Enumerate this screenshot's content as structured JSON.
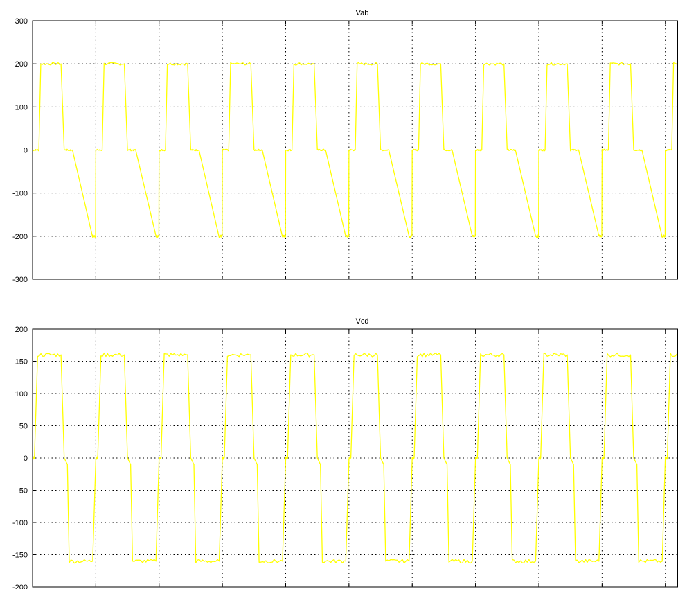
{
  "chart_data": [
    {
      "type": "line",
      "title": "Vab",
      "xlabel": "",
      "ylabel": "",
      "ylim": [
        -300,
        300
      ],
      "yticks": [
        -300,
        -200,
        -100,
        0,
        100,
        200,
        300
      ],
      "ytick_labels": [
        "-300",
        "-200",
        "-100",
        "0",
        "100",
        "200",
        "300"
      ],
      "xlim": [
        0,
        10.2
      ],
      "xticks": [
        1,
        2,
        3,
        4,
        5,
        6,
        7,
        8,
        9,
        10
      ],
      "grid": true,
      "background": "#ffffff",
      "series": [
        {
          "color": "#ffff00",
          "waveform": "quasi-square",
          "amplitude": 200,
          "period": 1,
          "cycles": 10.2,
          "x": [
            0,
            0.1,
            0.13,
            0.45,
            0.5,
            0.63,
            0.95,
            1.0
          ],
          "y": [
            0,
            0,
            200,
            200,
            0,
            0,
            -200,
            -200
          ]
        }
      ]
    },
    {
      "type": "line",
      "title": "Vcd",
      "xlabel": "",
      "ylabel": "",
      "ylim": [
        -200,
        200
      ],
      "yticks": [
        -200,
        -150,
        -100,
        -50,
        0,
        50,
        100,
        150,
        200
      ],
      "ytick_labels": [
        "-200",
        "-150",
        "-100",
        "-50",
        "0",
        "50",
        "100",
        "150",
        "200"
      ],
      "xlim": [
        0,
        10.2
      ],
      "xticks": [
        1,
        2,
        3,
        4,
        5,
        6,
        7,
        8,
        9,
        10
      ],
      "grid": true,
      "background": "#ffffff",
      "series": [
        {
          "color": "#ffff00",
          "waveform": "quasi-square",
          "amplitude": 160,
          "period": 1,
          "cycles": 10.2,
          "x": [
            0,
            0.03,
            0.08,
            0.45,
            0.5,
            0.55,
            0.58,
            0.95,
            1.0
          ],
          "y": [
            0,
            0,
            160,
            160,
            0,
            -10,
            -160,
            -160,
            0
          ]
        }
      ]
    }
  ]
}
